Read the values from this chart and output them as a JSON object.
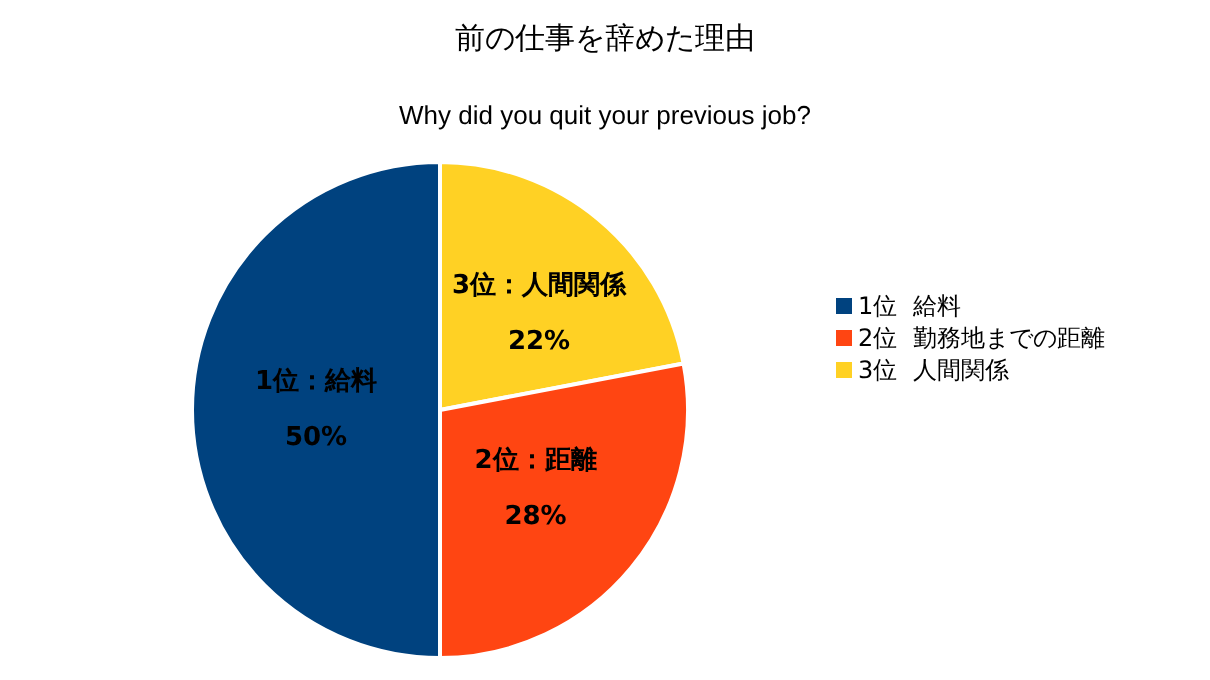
{
  "chart_data": {
    "type": "pie",
    "title": "前の仕事を辞めた理由",
    "subtitle": "Why did you quit your previous job?",
    "categories": [
      "1位  給料",
      "2位  勤務地までの距離",
      "3位  人間関係"
    ],
    "values": [
      50,
      28,
      22
    ],
    "colors": [
      "#00427f",
      "#ff4512",
      "#ffd124"
    ],
    "value_labels": [
      "50%",
      "28%",
      "22%"
    ],
    "annotations": [
      "1位：給料",
      "2位：距離",
      "3位：人間関係"
    ],
    "legend": "right"
  }
}
